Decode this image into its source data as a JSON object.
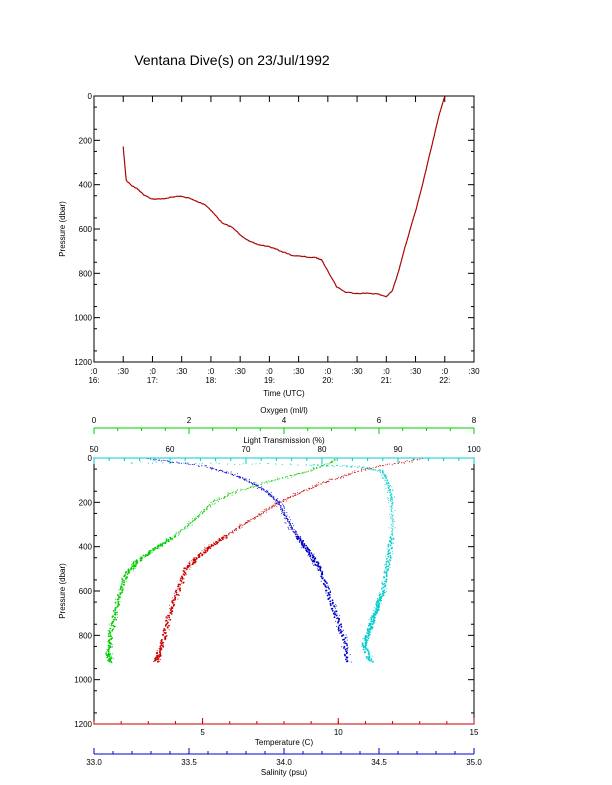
{
  "title": "Ventana Dive(s) on 23/Jul/1992",
  "chart_data": [
    {
      "type": "line",
      "xlabel": "Time (UTC)",
      "ylabel": "Pressure (dbar)",
      "x_ticks": [
        ":0\n16:",
        ":30",
        ":0\n17:",
        ":30",
        ":0\n18:",
        ":30",
        ":0\n19:",
        ":30",
        ":0\n20:",
        ":30",
        ":0\n21:",
        ":30",
        ":0\n22:",
        ":30"
      ],
      "xlim_hours": [
        16.0,
        22.5
      ],
      "ylim": [
        1200,
        0
      ],
      "y_ticks": [
        0,
        200,
        400,
        600,
        800,
        1000,
        1200
      ],
      "series": [
        {
          "color": "#cc0000",
          "x_hours": [
            16.5,
            16.55,
            16.65,
            16.75,
            16.85,
            17.0,
            17.15,
            17.3,
            17.45,
            17.6,
            17.75,
            17.9,
            18.0,
            18.1,
            18.2,
            18.35,
            18.5,
            18.65,
            18.8,
            19.0,
            19.2,
            19.4,
            19.6,
            19.8,
            19.9,
            20.0,
            20.15,
            20.3,
            20.5,
            20.7,
            20.85,
            21.0,
            21.1,
            21.2,
            21.3,
            21.4,
            21.5,
            21.6,
            21.7,
            21.8,
            21.9,
            22.0
          ],
          "pressure": [
            230,
            380,
            405,
            420,
            445,
            465,
            465,
            458,
            452,
            458,
            475,
            490,
            515,
            545,
            575,
            590,
            625,
            655,
            670,
            680,
            700,
            720,
            725,
            730,
            740,
            790,
            860,
            885,
            890,
            890,
            893,
            905,
            880,
            800,
            700,
            610,
            520,
            420,
            310,
            200,
            90,
            0
          ]
        }
      ]
    },
    {
      "type": "scatter",
      "ylabel": "Pressure (dbar)",
      "ylim": [
        1200,
        0
      ],
      "y_ticks": [
        0,
        200,
        400,
        600,
        800,
        1000,
        1200
      ],
      "axes": [
        {
          "position": "top",
          "label": "Oxygen (ml/l)",
          "color": "#00cc00",
          "range": [
            0,
            8
          ],
          "ticks": [
            0,
            2,
            4,
            6,
            8
          ]
        },
        {
          "position": "top",
          "label": "Light Transmission (%)",
          "color": "#00cccc",
          "range": [
            50,
            100
          ],
          "ticks": [
            50,
            60,
            70,
            80,
            90,
            100
          ]
        },
        {
          "position": "bottom",
          "label": "Temperature (C)",
          "color": "#cc0000",
          "range": [
            1,
            15
          ],
          "ticks": [
            5,
            10,
            15
          ]
        },
        {
          "position": "bottom",
          "label": "Salinity (psu)",
          "color": "#0000cc",
          "range": [
            33.0,
            35.0
          ],
          "ticks": [
            "33.0",
            "33.5",
            "34.0",
            "34.5",
            "35.0"
          ]
        }
      ],
      "series": [
        {
          "color": "#00cc00",
          "axis": "Oxygen (ml/l)",
          "x": [
            5.1,
            4.5,
            3.8,
            3.0,
            2.5,
            2.2,
            1.9,
            1.5,
            1.2,
            0.9,
            0.7,
            0.55,
            0.45,
            0.35,
            0.3,
            0.35
          ],
          "pressure": [
            10,
            60,
            100,
            150,
            200,
            260,
            320,
            380,
            420,
            470,
            520,
            600,
            700,
            800,
            880,
            920
          ]
        },
        {
          "color": "#00cccc",
          "axis": "Light Transmission (%)",
          "x": [
            55,
            78,
            85,
            88,
            88.5,
            89,
            89.2,
            89.3,
            89,
            88.5,
            88,
            87.5,
            87,
            86.5,
            86,
            85.5,
            86.5
          ],
          "pressure": [
            20,
            30,
            40,
            60,
            100,
            150,
            200,
            300,
            400,
            500,
            600,
            650,
            700,
            750,
            800,
            850,
            920
          ]
        },
        {
          "color": "#cc0000",
          "axis": "Temperature (C)",
          "x": [
            13.0,
            11.0,
            9.7,
            8.7,
            7.8,
            7.2,
            6.5,
            5.9,
            5.3,
            4.8,
            4.4,
            4.1,
            3.8,
            3.6,
            3.4,
            3.3
          ],
          "pressure": [
            5,
            50,
            100,
            150,
            200,
            250,
            300,
            350,
            400,
            450,
            500,
            600,
            700,
            800,
            880,
            920
          ]
        },
        {
          "color": "#0000cc",
          "axis": "Salinity (psu)",
          "x": [
            33.3,
            33.6,
            33.75,
            33.85,
            33.92,
            33.97,
            34.0,
            34.03,
            34.07,
            34.11,
            34.15,
            34.19,
            34.23,
            34.27,
            34.31,
            34.34
          ],
          "pressure": [
            5,
            40,
            80,
            120,
            160,
            200,
            250,
            300,
            350,
            400,
            450,
            500,
            600,
            700,
            800,
            920
          ]
        }
      ]
    }
  ]
}
